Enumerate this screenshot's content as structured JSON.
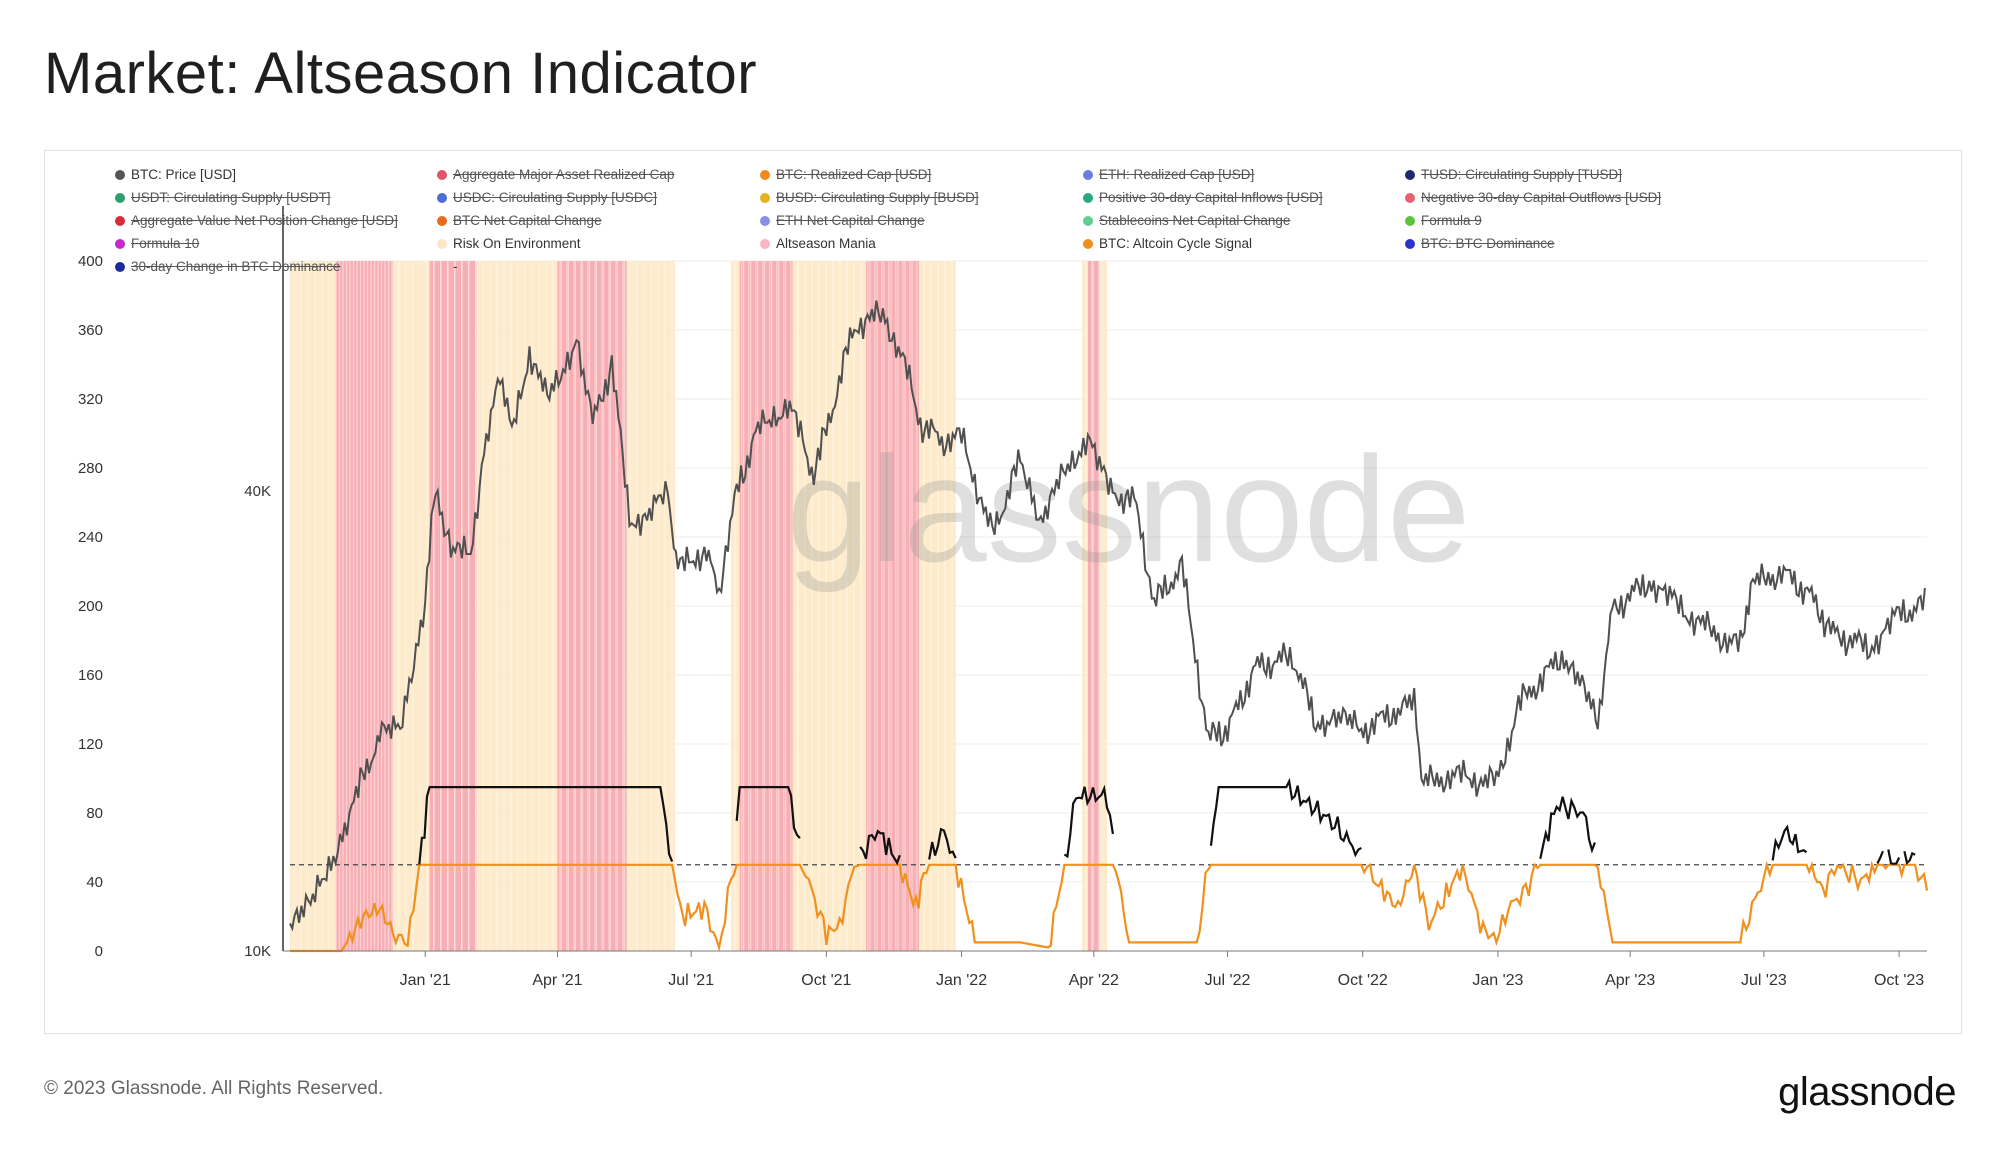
{
  "page": {
    "title": "Market: Altseason Indicator",
    "copyright": "© 2023 Glassnode. All Rights Reserved.",
    "brand": "glassnode",
    "watermark": "glassnode"
  },
  "legend": [
    {
      "label": "BTC: Price [USD]",
      "color": "#555555",
      "active": true
    },
    {
      "label": "Aggregate Major Asset Realized Cap",
      "color": "#e0556a",
      "active": false
    },
    {
      "label": "BTC: Realized Cap [USD]",
      "color": "#f08a1c",
      "active": false
    },
    {
      "label": "ETH: Realized Cap [USD]",
      "color": "#6b7de0",
      "active": false
    },
    {
      "label": "TUSD: Circulating Supply [TUSD]",
      "color": "#1c2a6e",
      "active": false
    },
    {
      "label": "USDT: Circulating Supply [USDT]",
      "color": "#2aa06a",
      "active": false
    },
    {
      "label": "USDC: Circulating Supply [USDC]",
      "color": "#4a6fd0",
      "active": false
    },
    {
      "label": "BUSD: Circulating Supply [BUSD]",
      "color": "#e3b21c",
      "active": false
    },
    {
      "label": "Positive 30-day Capital Inflows [USD]",
      "color": "#27a97c",
      "active": false
    },
    {
      "label": "Negative 30-day Capital Outflows [USD]",
      "color": "#ec5f6e",
      "active": false
    },
    {
      "label": "Aggregate Value Net Position Change [USD]",
      "color": "#d82a3a",
      "active": false
    },
    {
      "label": "BTC Net Capital Change",
      "color": "#e86a1a",
      "active": false
    },
    {
      "label": "ETH Net Capital Change",
      "color": "#8a8fe6",
      "active": false
    },
    {
      "label": "Stablecoins Net Capital Change",
      "color": "#5fd08f",
      "active": false
    },
    {
      "label": "Formula 9",
      "color": "#5cc23a",
      "active": false
    },
    {
      "label": "Formula 10",
      "color": "#c72ac8",
      "active": false
    },
    {
      "label": "Risk On Environment",
      "color": "#fde7c3",
      "active": true
    },
    {
      "label": "Altseason Mania",
      "color": "#f7b6c1",
      "active": true
    },
    {
      "label": "BTC: Altcoin Cycle Signal",
      "color": "#f0901e",
      "active": true
    },
    {
      "label": "BTC: BTC Dominance",
      "color": "#2a33c8",
      "active": false
    },
    {
      "label": "30-day Change in BTC Dominance",
      "color": "#1c2aa0",
      "active": false
    },
    {
      "label": "-",
      "color": "",
      "active": true
    }
  ],
  "chart_data": {
    "type": "line",
    "x_ticks": [
      "Jan '21",
      "Apr '21",
      "Jul '21",
      "Oct '21",
      "Jan '22",
      "Apr '22",
      "Jul '22",
      "Oct '22",
      "Jan '23",
      "Apr '23",
      "Jul '23",
      "Oct '23"
    ],
    "y_left_ticks": [
      "0",
      "40",
      "80",
      "120",
      "160",
      "200",
      "240",
      "280",
      "320",
      "360",
      "400"
    ],
    "y_left_range": [
      0,
      400
    ],
    "y_right_ticks": [
      "10K",
      "40K"
    ],
    "y_right_scale": "log",
    "threshold_line": 50,
    "x_range": [
      "2020-10-01",
      "2023-10-20"
    ],
    "btc_price": [
      [
        "2020-10-01",
        10800
      ],
      [
        "2020-10-15",
        11400
      ],
      [
        "2020-11-01",
        13600
      ],
      [
        "2020-11-15",
        16000
      ],
      [
        "2020-12-01",
        19100
      ],
      [
        "2020-12-15",
        19400
      ],
      [
        "2021-01-01",
        29000
      ],
      [
        "2021-01-08",
        40500
      ],
      [
        "2021-01-20",
        33000
      ],
      [
        "2021-02-01",
        33500
      ],
      [
        "2021-02-10",
        45000
      ],
      [
        "2021-02-21",
        56000
      ],
      [
        "2021-03-01",
        47000
      ],
      [
        "2021-03-13",
        61000
      ],
      [
        "2021-03-25",
        52500
      ],
      [
        "2021-04-14",
        63500
      ],
      [
        "2021-04-25",
        49000
      ],
      [
        "2021-05-08",
        58500
      ],
      [
        "2021-05-20",
        37000
      ],
      [
        "2021-06-01",
        36500
      ],
      [
        "2021-06-15",
        40000
      ],
      [
        "2021-06-22",
        31500
      ],
      [
        "2021-07-10",
        33500
      ],
      [
        "2021-07-20",
        29800
      ],
      [
        "2021-08-01",
        39800
      ],
      [
        "2021-08-14",
        47500
      ],
      [
        "2021-09-06",
        52500
      ],
      [
        "2021-09-21",
        42000
      ],
      [
        "2021-10-01",
        48000
      ],
      [
        "2021-10-20",
        66000
      ],
      [
        "2021-11-10",
        68000
      ],
      [
        "2021-11-25",
        57000
      ],
      [
        "2021-12-04",
        49000
      ],
      [
        "2021-12-20",
        46500
      ],
      [
        "2022-01-01",
        47000
      ],
      [
        "2022-01-22",
        35000
      ],
      [
        "2022-02-10",
        44000
      ],
      [
        "2022-02-24",
        37000
      ],
      [
        "2022-03-28",
        47500
      ],
      [
        "2022-04-11",
        40000
      ],
      [
        "2022-04-30",
        38500
      ],
      [
        "2022-05-12",
        28500
      ],
      [
        "2022-05-31",
        31800
      ],
      [
        "2022-06-18",
        19000
      ],
      [
        "2022-07-01",
        19500
      ],
      [
        "2022-07-20",
        23500
      ],
      [
        "2022-08-14",
        24300
      ],
      [
        "2022-08-30",
        20000
      ],
      [
        "2022-09-13",
        20200
      ],
      [
        "2022-09-30",
        19400
      ],
      [
        "2022-10-25",
        20700
      ],
      [
        "2022-11-05",
        21300
      ],
      [
        "2022-11-10",
        16500
      ],
      [
        "2022-12-01",
        17000
      ],
      [
        "2022-12-31",
        16600
      ],
      [
        "2023-01-15",
        21000
      ],
      [
        "2023-02-15",
        24500
      ],
      [
        "2023-03-10",
        20000
      ],
      [
        "2023-03-20",
        28000
      ],
      [
        "2023-04-14",
        30500
      ],
      [
        "2023-05-01",
        28500
      ],
      [
        "2023-05-25",
        26300
      ],
      [
        "2023-06-15",
        25000
      ],
      [
        "2023-06-22",
        30000
      ],
      [
        "2023-07-13",
        31400
      ],
      [
        "2023-08-01",
        29300
      ],
      [
        "2023-08-17",
        26000
      ],
      [
        "2023-09-11",
        25000
      ],
      [
        "2023-10-01",
        27500
      ],
      [
        "2023-10-20",
        28500
      ]
    ],
    "altcoin_cycle_signal": [
      [
        "2020-10-01",
        0
      ],
      [
        "2020-11-05",
        0
      ],
      [
        "2020-11-20",
        20
      ],
      [
        "2020-12-01",
        25
      ],
      [
        "2020-12-12",
        8
      ],
      [
        "2020-12-20",
        3
      ],
      [
        "2020-12-28",
        50
      ],
      [
        "2021-01-04",
        95
      ],
      [
        "2021-06-10",
        95
      ],
      [
        "2021-06-18",
        50
      ],
      [
        "2021-06-25",
        20
      ],
      [
        "2021-07-10",
        25
      ],
      [
        "2021-07-20",
        2
      ],
      [
        "2021-07-30",
        50
      ],
      [
        "2021-08-03",
        95
      ],
      [
        "2021-09-05",
        95
      ],
      [
        "2021-09-15",
        50
      ],
      [
        "2021-10-01",
        10
      ],
      [
        "2021-10-10",
        15
      ],
      [
        "2021-10-20",
        50
      ],
      [
        "2021-11-05",
        70
      ],
      [
        "2021-11-20",
        50
      ],
      [
        "2021-12-01",
        25
      ],
      [
        "2021-12-08",
        50
      ],
      [
        "2021-12-20",
        70
      ],
      [
        "2021-12-28",
        50
      ],
      [
        "2022-01-10",
        5
      ],
      [
        "2022-02-10",
        5
      ],
      [
        "2022-03-01",
        2
      ],
      [
        "2022-03-12",
        50
      ],
      [
        "2022-03-20",
        90
      ],
      [
        "2022-04-10",
        90
      ],
      [
        "2022-04-16",
        50
      ],
      [
        "2022-04-25",
        5
      ],
      [
        "2022-05-25",
        5
      ],
      [
        "2022-06-10",
        5
      ],
      [
        "2022-06-18",
        50
      ],
      [
        "2022-06-25",
        95
      ],
      [
        "2022-08-10",
        95
      ],
      [
        "2022-09-10",
        75
      ],
      [
        "2022-09-30",
        55
      ],
      [
        "2022-10-10",
        40
      ],
      [
        "2022-10-25",
        25
      ],
      [
        "2022-11-05",
        50
      ],
      [
        "2022-11-15",
        15
      ],
      [
        "2022-11-25",
        30
      ],
      [
        "2022-12-08",
        50
      ],
      [
        "2022-12-20",
        15
      ],
      [
        "2022-12-31",
        5
      ],
      [
        "2023-01-08",
        25
      ],
      [
        "2023-01-20",
        35
      ],
      [
        "2023-01-28",
        50
      ],
      [
        "2023-02-10",
        85
      ],
      [
        "2023-02-28",
        80
      ],
      [
        "2023-03-10",
        50
      ],
      [
        "2023-03-20",
        5
      ],
      [
        "2023-04-30",
        5
      ],
      [
        "2023-06-15",
        5
      ],
      [
        "2023-06-25",
        30
      ],
      [
        "2023-07-05",
        50
      ],
      [
        "2023-07-15",
        70
      ],
      [
        "2023-07-30",
        55
      ],
      [
        "2023-08-10",
        35
      ],
      [
        "2023-08-20",
        50
      ],
      [
        "2023-09-05",
        40
      ],
      [
        "2023-09-20",
        55
      ],
      [
        "2023-10-01",
        50
      ],
      [
        "2023-10-10",
        55
      ],
      [
        "2023-10-20",
        35
      ]
    ],
    "risk_on_periods": [
      [
        "2020-10-01",
        "2021-06-20"
      ],
      [
        "2021-07-28",
        "2021-12-28"
      ],
      [
        "2022-03-24",
        "2022-04-10"
      ]
    ],
    "altseason_mania_periods": [
      [
        "2020-11-01",
        "2020-12-10"
      ],
      [
        "2021-01-04",
        "2021-02-05"
      ],
      [
        "2021-04-01",
        "2021-05-18"
      ],
      [
        "2021-08-03",
        "2021-09-08"
      ],
      [
        "2021-10-28",
        "2021-12-03"
      ],
      [
        "2022-03-28",
        "2022-04-05"
      ]
    ]
  }
}
